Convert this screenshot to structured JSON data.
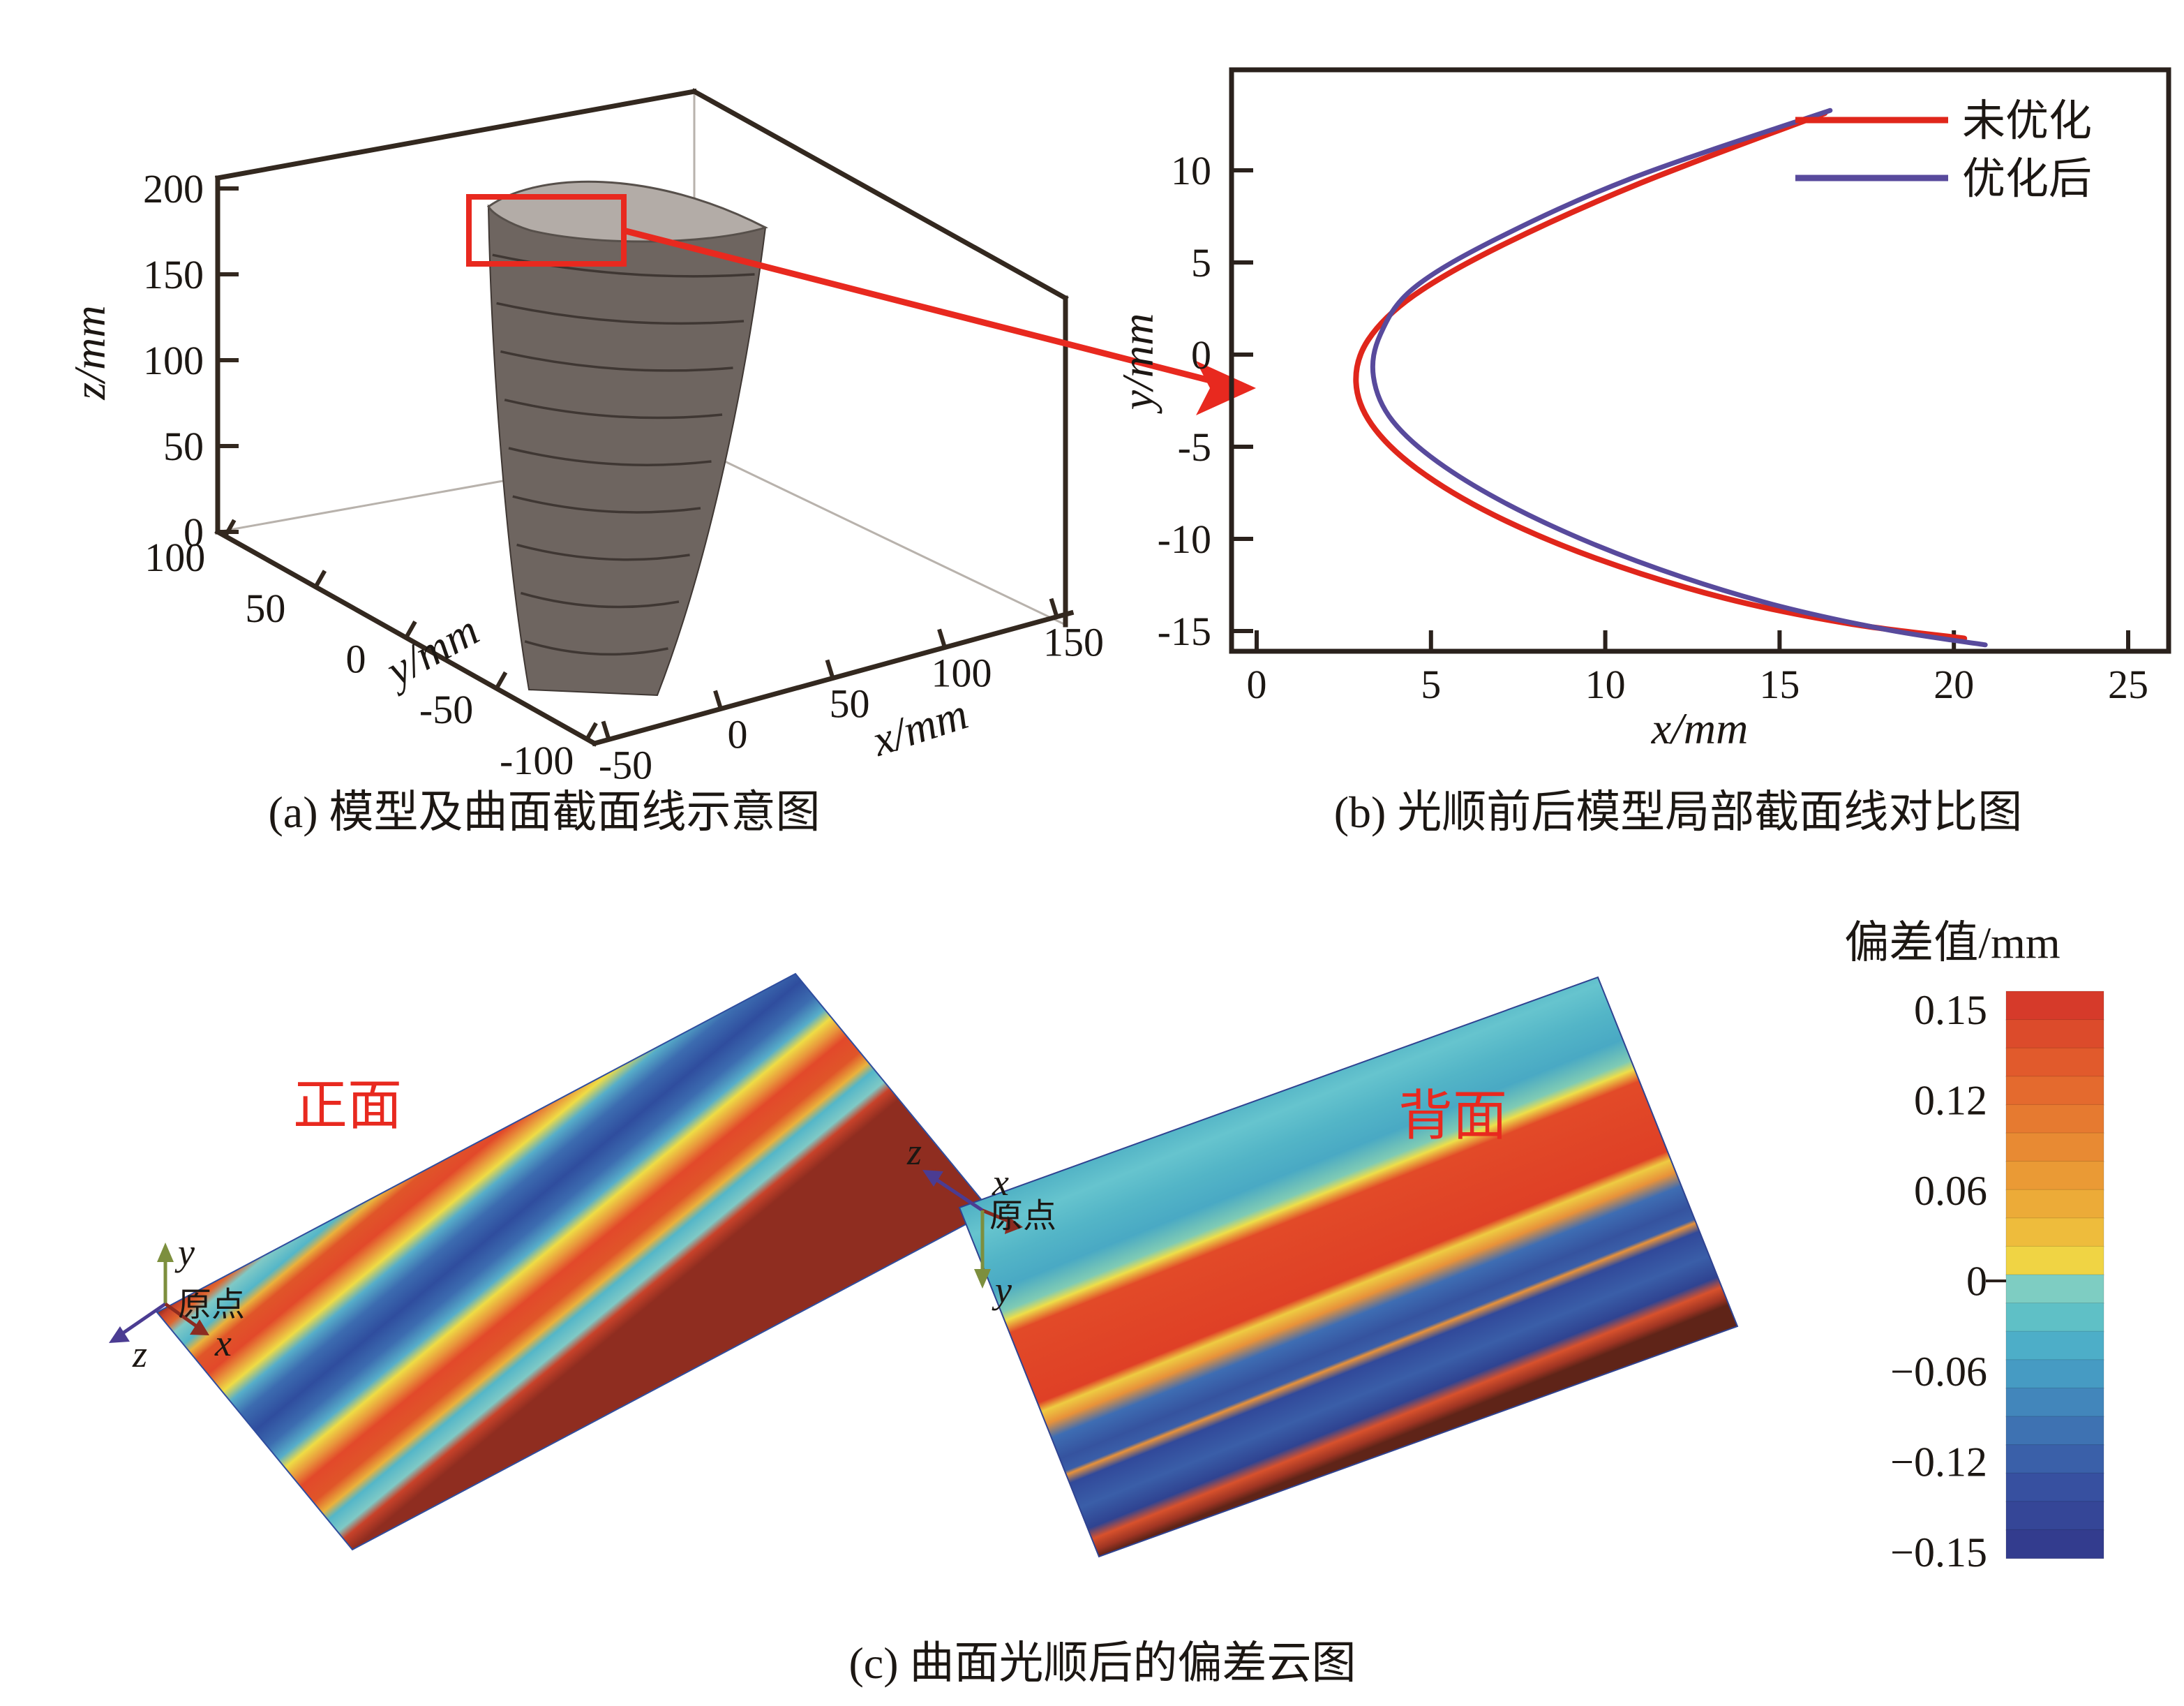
{
  "figure": {
    "panel_a": {
      "caption": "(a) 模型及曲面截面线示意图",
      "z_axis_label": "z/mm",
      "y_axis_label": "y/mm",
      "x_axis_label": "x/mm",
      "z_ticks": [
        "200",
        "150",
        "100",
        "50",
        "0"
      ],
      "y_ticks": [
        "100",
        "50",
        "0",
        "-50",
        "-100"
      ],
      "x_ticks": [
        "-50",
        "0",
        "50",
        "100",
        "150"
      ],
      "highlight_color": "#e8291f"
    },
    "panel_b": {
      "caption": "(b) 光顺前后模型局部截面线对比图",
      "x_axis_label": "x/mm",
      "y_axis_label": "y/mm",
      "x_ticks": [
        0,
        5,
        10,
        15,
        20,
        25
      ],
      "y_ticks": [
        10,
        5,
        0,
        -5,
        -10,
        -15
      ],
      "legend": [
        {
          "label": "未优化",
          "color": "#e0261b"
        },
        {
          "label": "优化后",
          "color": "#584a9c"
        }
      ]
    },
    "panel_c": {
      "caption": "(c) 曲面光顺后的偏差云图",
      "front_label": "正面",
      "back_label": "背面",
      "axis_triad": {
        "x": "x",
        "y": "y",
        "z": "z",
        "origin": "原点"
      },
      "triad_colors": {
        "x": "#8c2b20",
        "y": "#7d8f3e",
        "z": "#4b3c92"
      },
      "colorbar": {
        "title": "偏差值/mm",
        "tick_labels": [
          "0.15",
          "0.12",
          "0.06",
          "0",
          "-0.06",
          "-0.12",
          "-0.15"
        ],
        "band_colors": [
          "#d63a2a",
          "#dc4b2b",
          "#e15a2c",
          "#e46a2e",
          "#e67a30",
          "#e88a33",
          "#ea9a35",
          "#ecab38",
          "#eebc3c",
          "#f0d444",
          "#7ecdc2",
          "#5fc0c6",
          "#4daec8",
          "#469bc3",
          "#4286bb",
          "#3e72b2",
          "#3a60a9",
          "#3750a0",
          "#354697",
          "#333c8e"
        ]
      },
      "front_surface_stops": [
        [
          "0%",
          "#8f2d20"
        ],
        [
          "2%",
          "#c8422a"
        ],
        [
          "5.5%",
          "#e0662f"
        ],
        [
          "8.5%",
          "#7fc9c6"
        ],
        [
          "13.5%",
          "#54b6c8"
        ],
        [
          "16.5%",
          "#eab23c"
        ],
        [
          "20%",
          "#e05529"
        ],
        [
          "26%",
          "#e2492a"
        ],
        [
          "30%",
          "#e9973c"
        ],
        [
          "33.5%",
          "#efdc45"
        ],
        [
          "37.5%",
          "#57aec9"
        ],
        [
          "43%",
          "#3c6cb0"
        ],
        [
          "50%",
          "#2f4d9e"
        ],
        [
          "56.5%",
          "#3c6cb0"
        ],
        [
          "62%",
          "#57aec9"
        ],
        [
          "65.5%",
          "#efdc45"
        ],
        [
          "69.5%",
          "#e9973c"
        ],
        [
          "73.5%",
          "#e2492a"
        ],
        [
          "80%",
          "#e05529"
        ],
        [
          "84.5%",
          "#eab23c"
        ],
        [
          "87.5%",
          "#54b6c8"
        ],
        [
          "92.5%",
          "#7fc9c6"
        ],
        [
          "95.5%",
          "#c8422a"
        ],
        [
          "100%",
          "#8f2d20"
        ]
      ],
      "back_surface_stops": [
        [
          "0%",
          "#4fb0c4"
        ],
        [
          "8%",
          "#66c4ce"
        ],
        [
          "16%",
          "#53b5c7"
        ],
        [
          "24%",
          "#49a9c4"
        ],
        [
          "30%",
          "#7fcbb4"
        ],
        [
          "32.5%",
          "#eede49"
        ],
        [
          "36%",
          "#e24a28"
        ],
        [
          "56%",
          "#df4026"
        ],
        [
          "58.5%",
          "#eecb42"
        ],
        [
          "62%",
          "#e8923a"
        ],
        [
          "66%",
          "#3e6db3"
        ],
        [
          "72%",
          "#35539f"
        ],
        [
          "75.5%",
          "#3a5ea8"
        ],
        [
          "76.5%",
          "#e8923a"
        ],
        [
          "79%",
          "#31499a"
        ],
        [
          "86%",
          "#3a5ea8"
        ],
        [
          "92%",
          "#2f4391"
        ],
        [
          "95%",
          "#d8512c"
        ],
        [
          "98%",
          "#a03523"
        ],
        [
          "100%",
          "#5f2418"
        ]
      ]
    }
  },
  "chart_data": [
    {
      "type": "3d-surface",
      "title": "(a) 模型及曲面截面线示意图",
      "xlabel": "x/mm",
      "ylabel": "y/mm",
      "zlabel": "z/mm",
      "xlim": [
        -50,
        150
      ],
      "ylim": [
        -100,
        100
      ],
      "zlim": [
        0,
        200
      ],
      "x_ticks": [
        -50,
        0,
        50,
        100,
        150
      ],
      "y_ticks": [
        100,
        50,
        0,
        -50,
        -100
      ],
      "z_ticks": [
        200,
        150,
        100,
        50,
        0
      ],
      "annotations": [
        "red rectangle highlights leading edge of top section curve",
        "red arrow points from highlighted region to panel (b)"
      ]
    },
    {
      "type": "line",
      "title": "(b) 光顺前后模型局部截面线对比图",
      "xlabel": "x/mm",
      "ylabel": "y/mm",
      "xlim": [
        -1,
        26.2
      ],
      "ylim": [
        -16.3,
        15.1
      ],
      "x_ticks": [
        0,
        5,
        10,
        15,
        20,
        25
      ],
      "y_ticks": [
        10,
        5,
        0,
        -5,
        -10,
        -15
      ],
      "grid": false,
      "legend_position": "upper right",
      "series": [
        {
          "name": "未优化",
          "color": "#e0261b",
          "points": [
            [
              16.3,
              13.1
            ],
            [
              11.0,
              9.3
            ],
            [
              7.0,
              5.9
            ],
            [
              4.5,
              3.2
            ],
            [
              3.2,
              0.8
            ],
            [
              2.85,
              -1.5
            ],
            [
              3.3,
              -3.8
            ],
            [
              4.6,
              -6.2
            ],
            [
              6.8,
              -8.7
            ],
            [
              9.8,
              -11.1
            ],
            [
              13.4,
              -13.2
            ],
            [
              17.0,
              -14.6
            ],
            [
              20.3,
              -15.4
            ]
          ]
        },
        {
          "name": "优化后",
          "color": "#584a9c",
          "points": [
            [
              16.45,
              13.25
            ],
            [
              10.8,
              9.6
            ],
            [
              6.9,
              6.3
            ],
            [
              4.5,
              3.6
            ],
            [
              3.55,
              1.1
            ],
            [
              3.35,
              -1.2
            ],
            [
              3.9,
              -3.6
            ],
            [
              5.4,
              -6.1
            ],
            [
              7.8,
              -8.7
            ],
            [
              10.9,
              -11.2
            ],
            [
              14.5,
              -13.4
            ],
            [
              18.0,
              -14.9
            ],
            [
              20.9,
              -15.75
            ]
          ]
        }
      ]
    },
    {
      "type": "heatmap",
      "title": "(c) 曲面光顺后的偏差云图",
      "surfaces": [
        "正面",
        "背面"
      ],
      "colorbar_title": "偏差值/mm",
      "colorbar_ticks": [
        0.15,
        0.12,
        0.06,
        0,
        -0.06,
        -0.12,
        -0.15
      ],
      "value_range": [
        -0.15,
        0.15
      ],
      "description": "deviation bands run parallel to the blade long axis; front face alternates red/cyan/blue stripes, back face dominated by wide red band between cyan and blue zones"
    }
  ]
}
